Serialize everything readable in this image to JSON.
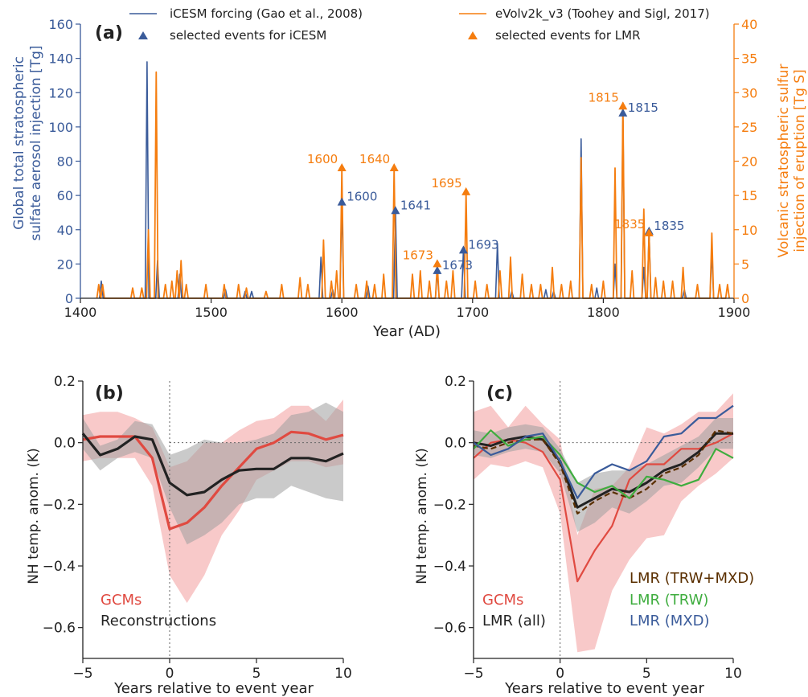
{
  "colors": {
    "icesm": "#3a5b9a",
    "evolv": "#f57d0f",
    "gcm_line": "#e04a41",
    "gcm_band": "#f5b7b7",
    "recon_line": "#222222",
    "recon_band": "#9e9e9e",
    "trw_mxd": "#5a2f00",
    "trw": "#3fad3f",
    "mxd": "#3a5b9a"
  },
  "chart_data": [
    {
      "panel_label": "(a)",
      "type": "line",
      "xlabel": "Year (AD)",
      "ylabel": [
        "Global total stratospheric",
        "sulfate aerosol injection [Tg]"
      ],
      "y2label": [
        "Volcanic stratospheric sulfur",
        "injection of eruption [Tg S]"
      ],
      "xlim": [
        1400,
        1900
      ],
      "ylim": [
        0,
        160
      ],
      "y2lim": [
        0,
        40
      ],
      "xticks": [
        "1400",
        "1500",
        "1600",
        "1700",
        "1800",
        "1900"
      ],
      "yticks": [
        "0",
        "20",
        "40",
        "60",
        "80",
        "100",
        "120",
        "140",
        "160"
      ],
      "y2ticks": [
        "0",
        "5",
        "10",
        "15",
        "20",
        "25",
        "30",
        "35",
        "40"
      ],
      "legend": [
        {
          "label": "iCESM forcing (Gao et al., 2008)",
          "marker": "line",
          "color": "#3a5b9a"
        },
        {
          "label": "selected events for iCESM",
          "marker": "triangle",
          "color": "#3a5b9a"
        },
        {
          "label": "eVolv2k_v3 (Toohey and Sigl, 2017)",
          "marker": "line",
          "color": "#f57d0f"
        },
        {
          "label": "selected events for LMR",
          "marker": "triangle",
          "color": "#f57d0f"
        }
      ],
      "series": [
        {
          "name": "iCESM forcing (Gao et al., 2008)",
          "axis": "left",
          "spikes": [
            [
              1416,
              10
            ],
            [
              1451,
              138
            ],
            [
              1459,
              22
            ],
            [
              1476,
              14
            ],
            [
              1511,
              5
            ],
            [
              1526,
              4
            ],
            [
              1531,
              4
            ],
            [
              1584,
              24
            ],
            [
              1593,
              5
            ],
            [
              1600,
              58
            ],
            [
              1620,
              7
            ],
            [
              1641,
              52
            ],
            [
              1673,
              16
            ],
            [
              1693,
              28
            ],
            [
              1719,
              32
            ],
            [
              1730,
              4
            ],
            [
              1756,
              5
            ],
            [
              1762,
              4
            ],
            [
              1783,
              93
            ],
            [
              1795,
              6
            ],
            [
              1809,
              20
            ],
            [
              1815,
              108
            ],
            [
              1831,
              18
            ],
            [
              1835,
              40
            ],
            [
              1862,
              5
            ],
            [
              1883,
              28
            ]
          ]
        },
        {
          "name": "eVolv2k_v3 (Toohey and Sigl, 2017)",
          "axis": "right",
          "spikes": [
            [
              1414,
              2
            ],
            [
              1417,
              2
            ],
            [
              1440,
              1.5
            ],
            [
              1447,
              1.5
            ],
            [
              1452,
              10
            ],
            [
              1458,
              33
            ],
            [
              1465,
              2
            ],
            [
              1470,
              2.5
            ],
            [
              1474,
              4
            ],
            [
              1477,
              5.5
            ],
            [
              1481,
              2
            ],
            [
              1496,
              2
            ],
            [
              1510,
              2
            ],
            [
              1521,
              2
            ],
            [
              1527,
              1.5
            ],
            [
              1542,
              1
            ],
            [
              1554,
              2
            ],
            [
              1568,
              3
            ],
            [
              1574,
              2
            ],
            [
              1586,
              8.5
            ],
            [
              1592,
              2.5
            ],
            [
              1596,
              4
            ],
            [
              1600,
              19
            ],
            [
              1611,
              2
            ],
            [
              1619,
              2.5
            ],
            [
              1625,
              2
            ],
            [
              1632,
              3.5
            ],
            [
              1640,
              19
            ],
            [
              1654,
              3.5
            ],
            [
              1660,
              4
            ],
            [
              1667,
              2.5
            ],
            [
              1673,
              5
            ],
            [
              1680,
              2.5
            ],
            [
              1685,
              4
            ],
            [
              1695,
              15.5
            ],
            [
              1702,
              2.5
            ],
            [
              1711,
              2
            ],
            [
              1721,
              4
            ],
            [
              1729,
              6
            ],
            [
              1738,
              3.5
            ],
            [
              1745,
              2
            ],
            [
              1752,
              2
            ],
            [
              1761,
              4.5
            ],
            [
              1768,
              2
            ],
            [
              1775,
              2.5
            ],
            [
              1783,
              20.5
            ],
            [
              1791,
              2
            ],
            [
              1800,
              2.5
            ],
            [
              1809,
              19
            ],
            [
              1815,
              28.5
            ],
            [
              1822,
              4
            ],
            [
              1831,
              13
            ],
            [
              1835,
              9.5
            ],
            [
              1840,
              3
            ],
            [
              1846,
              2.5
            ],
            [
              1853,
              2.5
            ],
            [
              1861,
              4.5
            ],
            [
              1872,
              2
            ],
            [
              1883,
              9.5
            ],
            [
              1889,
              2
            ],
            [
              1895,
              2
            ]
          ]
        }
      ],
      "markers": [
        {
          "series": "iCESM",
          "x": 1600,
          "y": 56,
          "label": "1600"
        },
        {
          "series": "iCESM",
          "x": 1641,
          "y": 51,
          "label": "1641"
        },
        {
          "series": "iCESM",
          "x": 1673,
          "y": 16,
          "label": "1673"
        },
        {
          "series": "iCESM",
          "x": 1693,
          "y": 28,
          "label": "1693"
        },
        {
          "series": "iCESM",
          "x": 1815,
          "y": 108,
          "label": "1815"
        },
        {
          "series": "iCESM",
          "x": 1835,
          "y": 39,
          "label": "1835"
        },
        {
          "series": "LMR",
          "x": 1600,
          "y2": 19,
          "label": "1600"
        },
        {
          "series": "LMR",
          "x": 1640,
          "y2": 19,
          "label": "1640"
        },
        {
          "series": "LMR",
          "x": 1673,
          "y2": 5,
          "label": "1673"
        },
        {
          "series": "LMR",
          "x": 1695,
          "y2": 15.5,
          "label": "1695"
        },
        {
          "series": "LMR",
          "x": 1815,
          "y2": 28,
          "label": "1815"
        },
        {
          "series": "LMR",
          "x": 1835,
          "y2": 9.5,
          "label": "1835"
        }
      ]
    },
    {
      "panel_label": "(b)",
      "type": "line",
      "xlabel": "Years relative to event year",
      "ylabel": "NH temp. anom. (K)",
      "xlim": [
        -5,
        10
      ],
      "ylim": [
        -0.7,
        0.2
      ],
      "xticks": [
        "−5",
        "0",
        "5",
        "10"
      ],
      "yticks": [
        "0.2",
        "0.0",
        "−0.2",
        "−0.4",
        "−0.6"
      ],
      "x": [
        -5,
        -4,
        -3,
        -2,
        -1,
        0,
        1,
        2,
        3,
        4,
        5,
        6,
        7,
        8,
        9,
        10
      ],
      "legend": [
        {
          "label": "GCMs",
          "color": "#e04a41"
        },
        {
          "label": "Reconstructions",
          "color": "#222222"
        }
      ],
      "series": [
        {
          "name": "GCMs",
          "values": [
            0.01,
            0.02,
            0.02,
            0.02,
            -0.05,
            -0.28,
            -0.26,
            -0.21,
            -0.14,
            -0.08,
            -0.02,
            0.0,
            0.035,
            0.03,
            0.01,
            0.025
          ],
          "upper": [
            0.09,
            0.1,
            0.1,
            0.08,
            0.05,
            -0.08,
            -0.06,
            0.0,
            0.0,
            0.04,
            0.07,
            0.08,
            0.12,
            0.12,
            0.07,
            0.14
          ],
          "lower": [
            -0.06,
            -0.05,
            -0.05,
            -0.05,
            -0.14,
            -0.43,
            -0.52,
            -0.43,
            -0.3,
            -0.22,
            -0.12,
            -0.09,
            -0.06,
            -0.06,
            -0.08,
            -0.07
          ]
        },
        {
          "name": "Reconstructions",
          "values": [
            0.03,
            -0.04,
            -0.02,
            0.02,
            0.01,
            -0.13,
            -0.17,
            -0.16,
            -0.12,
            -0.09,
            -0.085,
            -0.085,
            -0.05,
            -0.05,
            -0.06,
            -0.035
          ],
          "upper": [
            0.08,
            -0.01,
            0.01,
            0.07,
            0.06,
            -0.04,
            -0.02,
            0.01,
            0.0,
            0.0,
            0.01,
            0.03,
            0.09,
            0.1,
            0.13,
            0.1
          ],
          "lower": [
            -0.02,
            -0.09,
            -0.05,
            -0.03,
            -0.05,
            -0.21,
            -0.33,
            -0.3,
            -0.26,
            -0.2,
            -0.18,
            -0.18,
            -0.14,
            -0.16,
            -0.18,
            -0.19
          ]
        }
      ]
    },
    {
      "panel_label": "(c)",
      "type": "line",
      "xlabel": "Years relative to event year",
      "ylabel": "NH temp. anom. (K)",
      "xlim": [
        -5,
        10
      ],
      "ylim": [
        -0.7,
        0.2
      ],
      "xticks": [
        "−5",
        "0",
        "5",
        "10"
      ],
      "yticks": [
        "0.2",
        "0.0",
        "−0.2",
        "−0.4",
        "−0.6"
      ],
      "x": [
        -5,
        -4,
        -3,
        -2,
        -1,
        0,
        1,
        2,
        3,
        4,
        5,
        6,
        7,
        8,
        9,
        10
      ],
      "legend": [
        {
          "label": "GCMs",
          "color": "#e04a41"
        },
        {
          "label": "LMR (all)",
          "color": "#222222"
        },
        {
          "label": "LMR (TRW+MXD)",
          "color": "#5a2f00"
        },
        {
          "label": "LMR (TRW)",
          "color": "#3fad3f"
        },
        {
          "label": "LMR (MXD)",
          "color": "#3a5b9a"
        }
      ],
      "series": [
        {
          "name": "GCMs",
          "values": [
            -0.05,
            0.0,
            0.01,
            0.0,
            -0.03,
            -0.12,
            -0.45,
            -0.35,
            -0.27,
            -0.12,
            -0.07,
            -0.07,
            -0.02,
            -0.02,
            0.0,
            0.03
          ],
          "upper": [
            0.1,
            0.12,
            0.05,
            0.12,
            0.06,
            0.01,
            -0.3,
            -0.15,
            -0.14,
            -0.08,
            0.05,
            0.03,
            0.06,
            0.1,
            0.1,
            0.16
          ],
          "lower": [
            -0.12,
            -0.07,
            -0.08,
            -0.06,
            -0.08,
            -0.23,
            -0.68,
            -0.67,
            -0.48,
            -0.38,
            -0.31,
            -0.3,
            -0.19,
            -0.14,
            -0.1,
            -0.05
          ]
        },
        {
          "name": "LMR (all)",
          "values": [
            0.0,
            -0.01,
            0.01,
            0.02,
            0.01,
            -0.06,
            -0.21,
            -0.18,
            -0.15,
            -0.16,
            -0.13,
            -0.09,
            -0.07,
            -0.03,
            0.03,
            0.03
          ],
          "upper": [
            0.04,
            0.03,
            0.05,
            0.06,
            0.05,
            -0.02,
            -0.13,
            -0.1,
            -0.09,
            -0.09,
            -0.07,
            -0.04,
            -0.01,
            0.02,
            0.08,
            0.08
          ],
          "lower": [
            -0.04,
            -0.05,
            -0.03,
            -0.02,
            -0.03,
            -0.1,
            -0.29,
            -0.26,
            -0.21,
            -0.23,
            -0.19,
            -0.14,
            -0.13,
            -0.08,
            -0.02,
            -0.02
          ]
        },
        {
          "name": "LMR (TRW+MXD)",
          "values": [
            -0.01,
            -0.02,
            0.0,
            0.01,
            0.01,
            -0.07,
            -0.23,
            -0.19,
            -0.16,
            -0.18,
            -0.15,
            -0.1,
            -0.08,
            -0.04,
            0.04,
            0.03
          ]
        },
        {
          "name": "LMR (TRW)",
          "values": [
            -0.02,
            0.04,
            -0.01,
            0.01,
            0.02,
            -0.04,
            -0.13,
            -0.16,
            -0.14,
            -0.18,
            -0.11,
            -0.12,
            -0.14,
            -0.12,
            -0.02,
            -0.05
          ]
        },
        {
          "name": "LMR (MXD)",
          "values": [
            0.0,
            -0.04,
            -0.02,
            0.02,
            0.03,
            -0.06,
            -0.18,
            -0.1,
            -0.07,
            -0.09,
            -0.06,
            0.02,
            0.03,
            0.08,
            0.08,
            0.12
          ]
        }
      ]
    }
  ]
}
